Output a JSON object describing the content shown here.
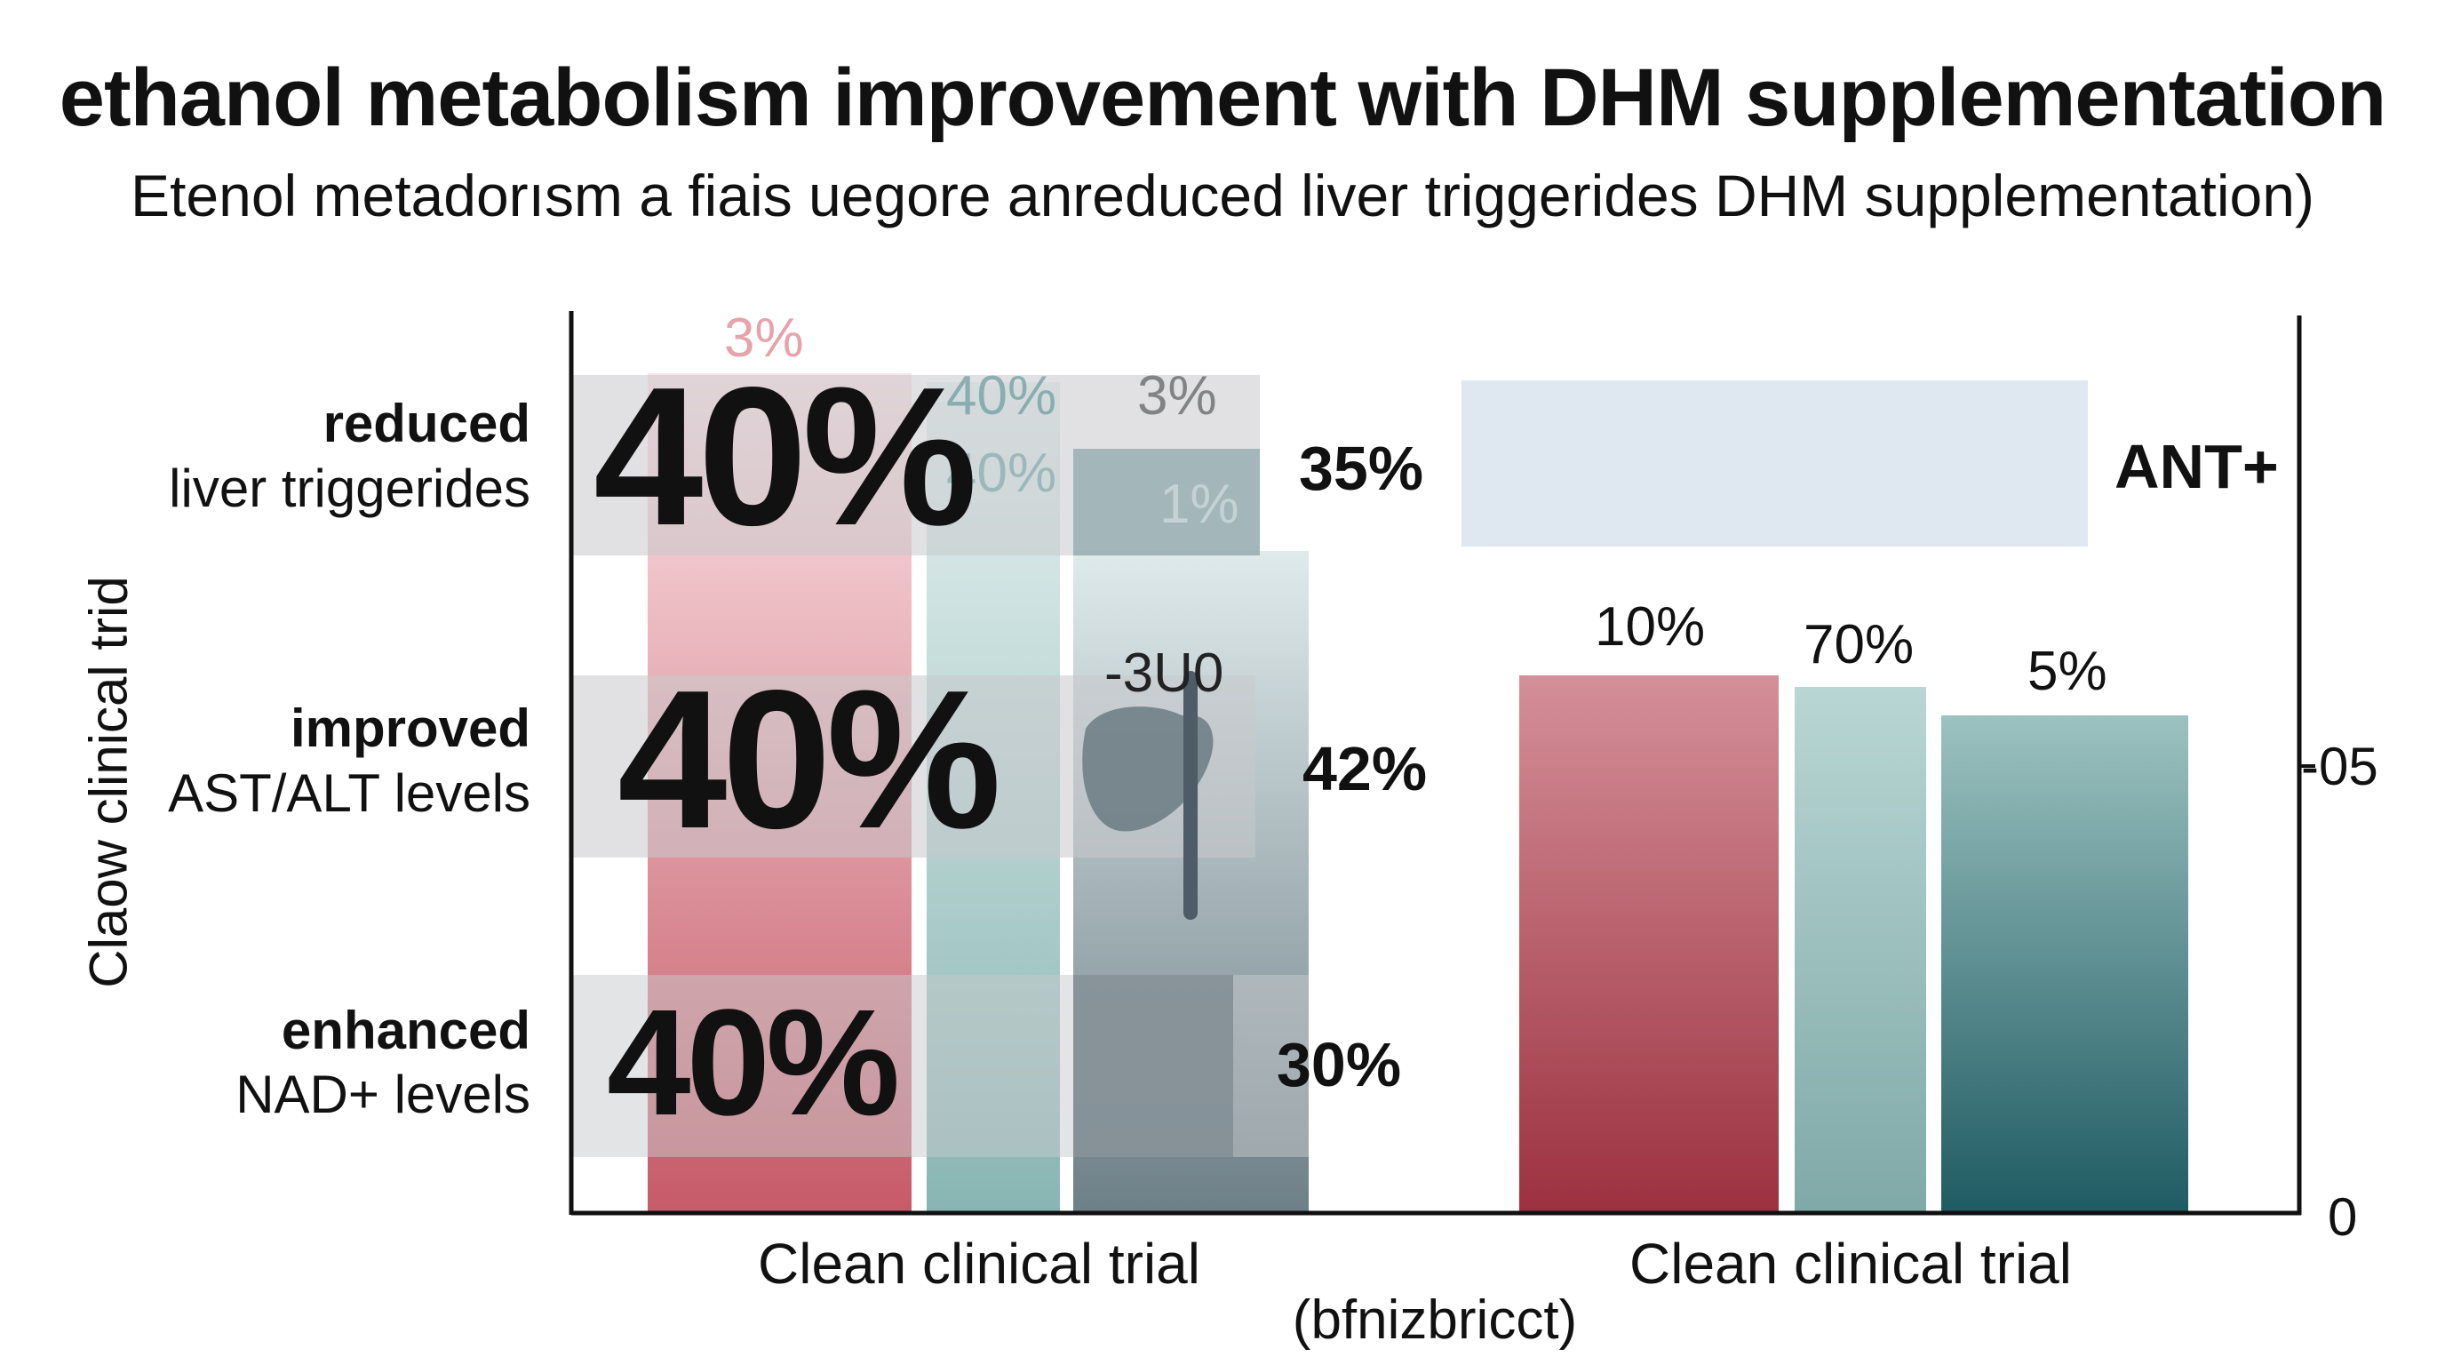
{
  "title": "ethanol metabolism improvement with DHM supplementation",
  "subtitle": "Etenol metadorısm a fiais uegore anreduced liver triggerides DHM supplementation)",
  "y_axis_label": "Claow clinical trid",
  "x_axis_caption": "(bfnizbricct)",
  "colors": {
    "red": "#c0505f",
    "light_teal": "#9cc4c1",
    "teal": "#3d7880",
    "slate": "#7c8e96",
    "band": "#dfe7f0"
  },
  "chart_data": [
    {
      "type": "bar",
      "category": "Clean clinical trial",
      "rows": [
        {
          "label_bold": "reduced",
          "label_rest": "liver triggerides",
          "big_value": "40%",
          "side_value": "35%",
          "top_labels": [
            "3%",
            "40%",
            "3%",
            "40%",
            "1%"
          ]
        },
        {
          "label_bold": "improved",
          "label_rest": "AST/ALT levels",
          "big_value": "40%",
          "side_value": "42%",
          "inner_label": "-3U0"
        },
        {
          "label_bold": "enhanced",
          "label_rest": "NAD+ levels",
          "big_value": "40%",
          "side_value": "30%"
        }
      ]
    },
    {
      "type": "bar",
      "category": "Clean clinical trial",
      "series": [
        {
          "label": "10%",
          "color": "red"
        },
        {
          "label": "70%",
          "color": "light_teal"
        },
        {
          "label": "5%",
          "color": "teal"
        }
      ],
      "band_label": "ANT+",
      "right_axis_ticks": [
        "-05",
        "0"
      ]
    }
  ]
}
